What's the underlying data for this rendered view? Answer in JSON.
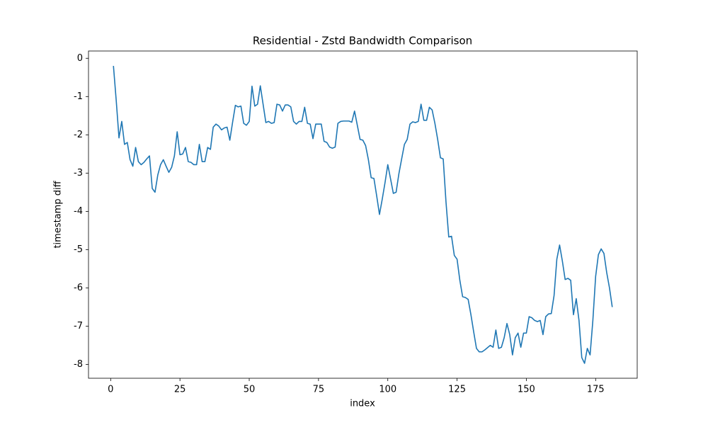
{
  "chart_data": {
    "type": "line",
    "title": "Residential - Zstd Bandwidth Comparison",
    "xlabel": "index",
    "ylabel": "timestamp diff",
    "x": [
      1,
      2,
      3,
      4,
      5,
      6,
      7,
      8,
      9,
      10,
      11,
      12,
      13,
      14,
      15,
      16,
      17,
      18,
      19,
      20,
      21,
      22,
      23,
      24,
      25,
      26,
      27,
      28,
      29,
      30,
      31,
      32,
      33,
      34,
      35,
      36,
      37,
      38,
      39,
      40,
      41,
      42,
      43,
      44,
      45,
      46,
      47,
      48,
      49,
      50,
      51,
      52,
      53,
      54,
      55,
      56,
      57,
      58,
      59,
      60,
      61,
      62,
      63,
      64,
      65,
      66,
      67,
      68,
      69,
      70,
      71,
      72,
      73,
      74,
      75,
      76,
      77,
      78,
      79,
      80,
      81,
      82,
      83,
      84,
      85,
      86,
      87,
      88,
      89,
      90,
      91,
      92,
      93,
      94,
      95,
      96,
      97,
      98,
      99,
      100,
      101,
      102,
      103,
      104,
      105,
      106,
      107,
      108,
      109,
      110,
      111,
      112,
      113,
      114,
      115,
      116,
      117,
      118,
      119,
      120,
      121,
      122,
      123,
      124,
      125,
      126,
      127,
      128,
      129,
      130,
      131,
      132,
      133,
      134,
      135,
      136,
      137,
      138,
      139,
      140,
      141,
      142,
      143,
      144,
      145,
      146,
      147,
      148,
      149,
      150,
      151,
      152,
      153,
      154,
      155,
      156,
      157,
      158,
      159,
      160,
      161,
      162,
      163,
      164,
      165,
      166,
      167,
      168,
      169,
      170,
      171,
      172,
      173,
      174,
      175,
      176,
      177,
      178,
      179,
      180,
      181
    ],
    "series": [
      {
        "name": "timestamp diff",
        "color": "#1f77b4",
        "values": [
          -0.2,
          -1.1,
          -2.08,
          -1.65,
          -2.25,
          -2.2,
          -2.65,
          -2.82,
          -2.33,
          -2.7,
          -2.78,
          -2.72,
          -2.63,
          -2.55,
          -3.4,
          -3.5,
          -3.05,
          -2.78,
          -2.65,
          -2.82,
          -2.98,
          -2.85,
          -2.55,
          -1.92,
          -2.52,
          -2.5,
          -2.33,
          -2.7,
          -2.72,
          -2.78,
          -2.78,
          -2.25,
          -2.7,
          -2.7,
          -2.33,
          -2.38,
          -1.8,
          -1.72,
          -1.77,
          -1.87,
          -1.82,
          -1.8,
          -2.14,
          -1.67,
          -1.23,
          -1.27,
          -1.25,
          -1.7,
          -1.75,
          -1.65,
          -0.73,
          -1.25,
          -1.2,
          -0.72,
          -1.2,
          -1.68,
          -1.65,
          -1.7,
          -1.68,
          -1.2,
          -1.22,
          -1.38,
          -1.22,
          -1.22,
          -1.27,
          -1.65,
          -1.72,
          -1.65,
          -1.65,
          -1.28,
          -1.7,
          -1.72,
          -2.1,
          -1.72,
          -1.72,
          -1.72,
          -2.17,
          -2.2,
          -2.32,
          -2.35,
          -2.32,
          -1.7,
          -1.65,
          -1.64,
          -1.64,
          -1.64,
          -1.67,
          -1.38,
          -1.75,
          -2.12,
          -2.14,
          -2.28,
          -2.65,
          -3.12,
          -3.14,
          -3.6,
          -4.08,
          -3.68,
          -3.25,
          -2.78,
          -3.15,
          -3.53,
          -3.5,
          -3.02,
          -2.63,
          -2.25,
          -2.12,
          -1.72,
          -1.66,
          -1.68,
          -1.65,
          -1.2,
          -1.62,
          -1.62,
          -1.28,
          -1.35,
          -1.7,
          -2.12,
          -2.6,
          -2.63,
          -3.75,
          -4.67,
          -4.65,
          -5.15,
          -5.25,
          -5.8,
          -6.23,
          -6.25,
          -6.3,
          -6.7,
          -7.15,
          -7.58,
          -7.67,
          -7.67,
          -7.62,
          -7.56,
          -7.5,
          -7.55,
          -7.1,
          -7.58,
          -7.55,
          -7.3,
          -6.93,
          -7.22,
          -7.75,
          -7.3,
          -7.18,
          -7.55,
          -7.18,
          -7.18,
          -6.75,
          -6.78,
          -6.85,
          -6.88,
          -6.85,
          -7.22,
          -6.75,
          -6.68,
          -6.67,
          -6.2,
          -5.25,
          -4.88,
          -5.3,
          -5.78,
          -5.75,
          -5.8,
          -6.7,
          -6.28,
          -6.85,
          -7.82,
          -7.97,
          -7.58,
          -7.75,
          -6.85,
          -5.7,
          -5.13,
          -4.98,
          -5.1,
          -5.6,
          -6.0,
          -6.5
        ]
      }
    ],
    "xlim": [
      -8,
      190
    ],
    "xticks": [
      0,
      25,
      50,
      75,
      100,
      125,
      150,
      175
    ],
    "ylim": [
      -8.36,
      0.19
    ],
    "yticks": [
      0,
      -1,
      -2,
      -3,
      -4,
      -5,
      -6,
      -7,
      -8
    ],
    "grid": false
  }
}
